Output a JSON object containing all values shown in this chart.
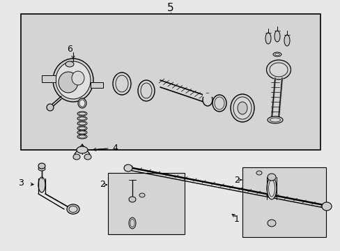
{
  "bg_color": "#e8e8e8",
  "box_bg": "#d8d8d8",
  "white": "#ffffff",
  "black": "#000000",
  "gray": "#888888",
  "lgray": "#cccccc",
  "fig_width": 4.89,
  "fig_height": 3.6,
  "dpi": 100,
  "label5": "5",
  "label6": "6",
  "label4": "4",
  "label3": "3",
  "label2": "2",
  "label1": "1"
}
